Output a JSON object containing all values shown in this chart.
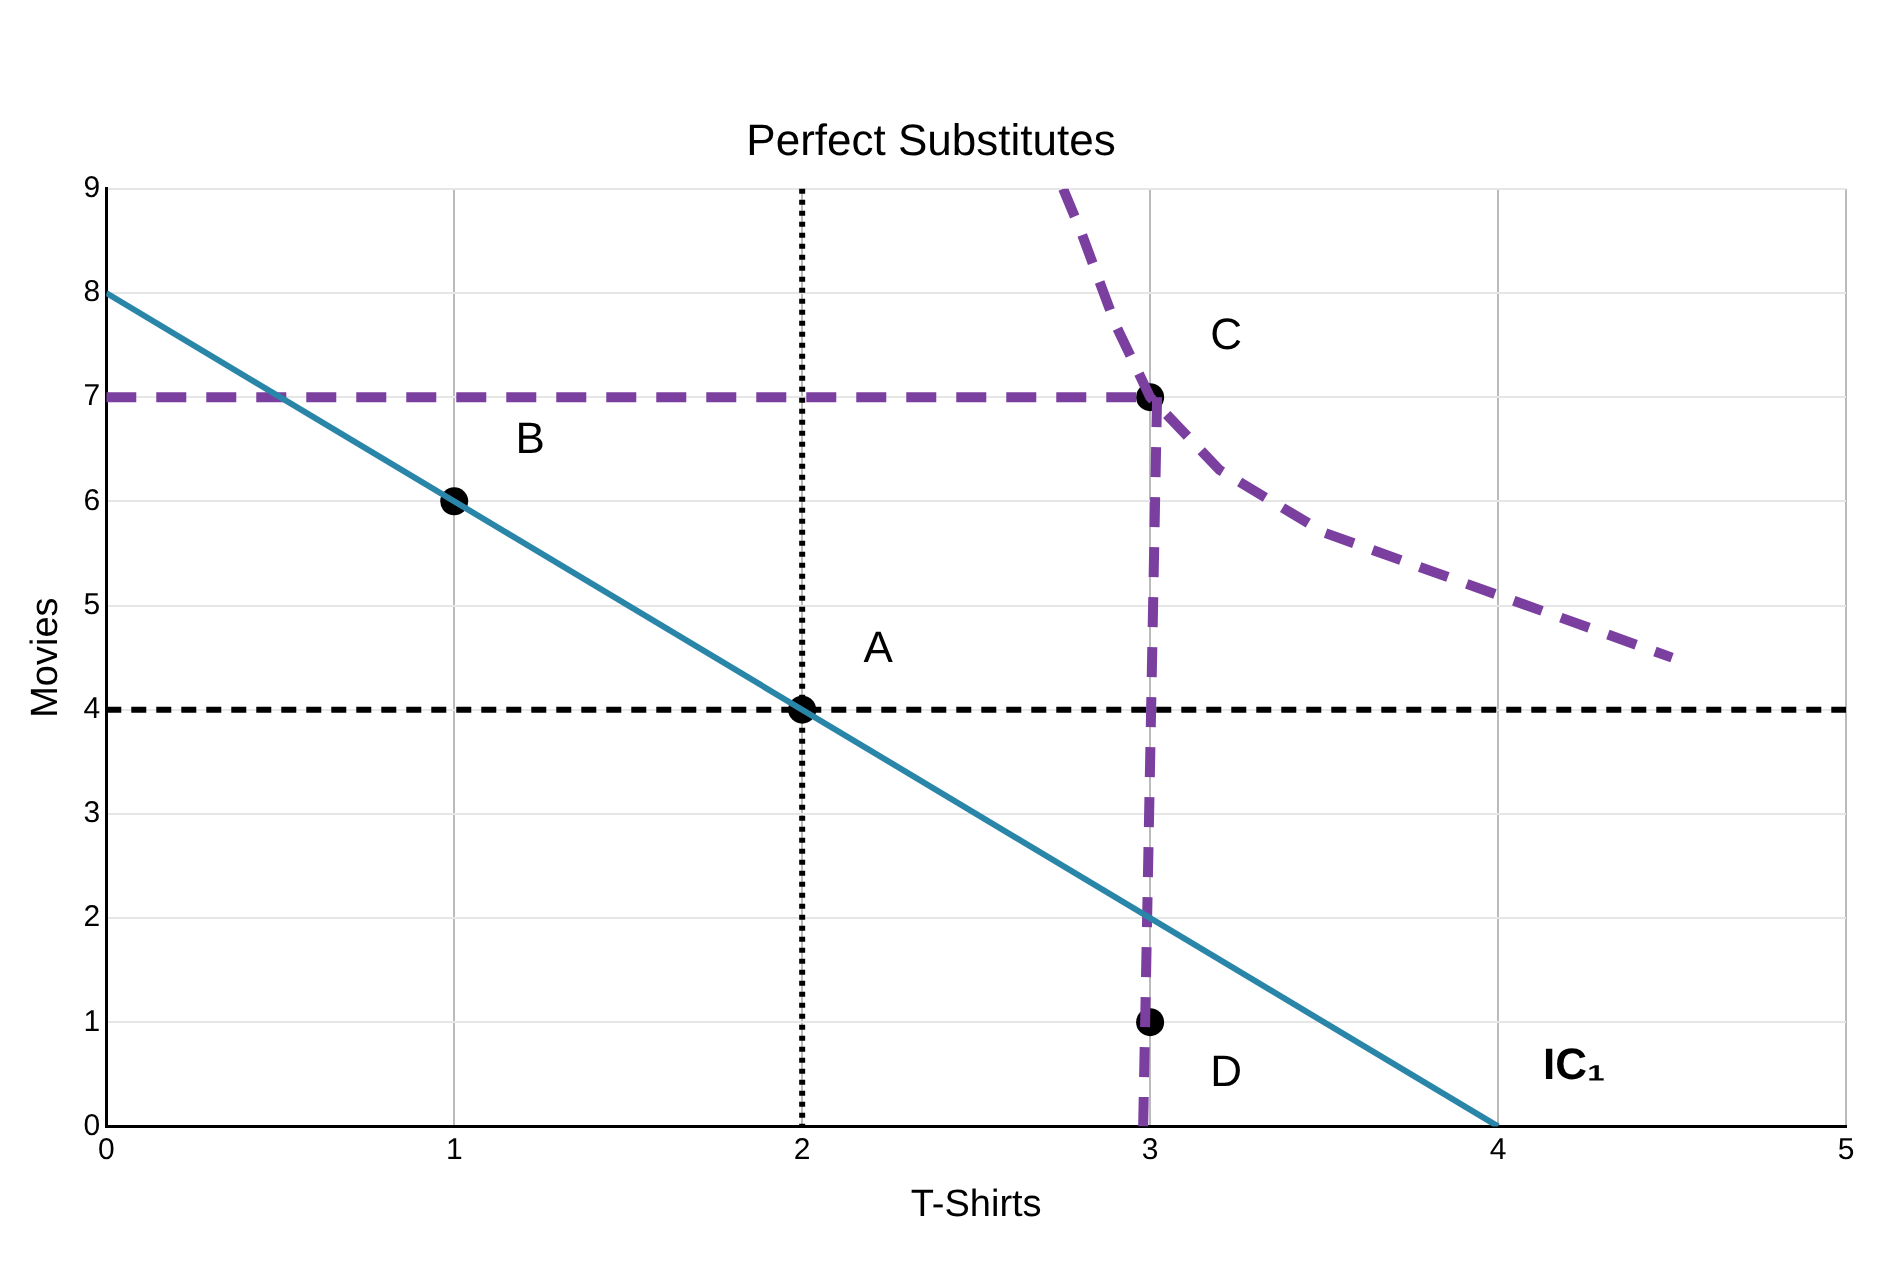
{
  "chart_data": {
    "type": "line",
    "title": "Perfect Substitutes",
    "xlabel": "T-Shirts",
    "ylabel": "Movies",
    "xlim": [
      0,
      5
    ],
    "ylim": [
      0,
      9
    ],
    "xticks": [
      0,
      1,
      2,
      3,
      4,
      5
    ],
    "yticks": [
      0,
      1,
      2,
      3,
      4,
      5,
      6,
      7,
      8,
      9
    ],
    "grid": true,
    "legend": false,
    "series": [
      {
        "color": "#2a86a8",
        "x": [
          0,
          4
        ],
        "values": [
          8,
          0
        ],
        "line_style": "solid",
        "marker": "none"
      },
      {
        "color": "#7b3fa0",
        "x": [
          0,
          3
        ],
        "values": [
          7,
          7
        ],
        "line_style": "dashed",
        "marker": "none"
      },
      {
        "color": "#7b3fa0",
        "x": [
          3.02,
          2.98
        ],
        "values": [
          7,
          0
        ],
        "line_style": "dashed",
        "marker": "none"
      },
      {
        "color": "#7b3fa0",
        "x": [
          2.75,
          2.8,
          2.9,
          3,
          3.2,
          3.5,
          4,
          4.5
        ],
        "values": [
          9,
          8.6,
          7.7,
          7,
          6.3,
          5.7,
          5.1,
          4.5
        ],
        "line_style": "dashed",
        "marker": "none"
      },
      {
        "type": "scatter",
        "color": "#000000",
        "x": [
          1,
          2,
          3,
          3
        ],
        "values": [
          6,
          4,
          7,
          1
        ],
        "marker": "circle"
      }
    ],
    "ref_lines": [
      {
        "axis": "x",
        "value": 2,
        "color": "#000000",
        "line_style": "dotted"
      },
      {
        "axis": "y",
        "value": 4,
        "color": "#000000",
        "line_style": "dashed"
      }
    ],
    "annotations": [
      {
        "text": "A",
        "x": 2,
        "y": 4
      },
      {
        "text": "B",
        "x": 1,
        "y": 6
      },
      {
        "text": "C",
        "x": 3,
        "y": 7
      },
      {
        "text": "D",
        "x": 3,
        "y": 1
      },
      {
        "text": "IC₁",
        "x": 4,
        "y": 0
      }
    ]
  }
}
